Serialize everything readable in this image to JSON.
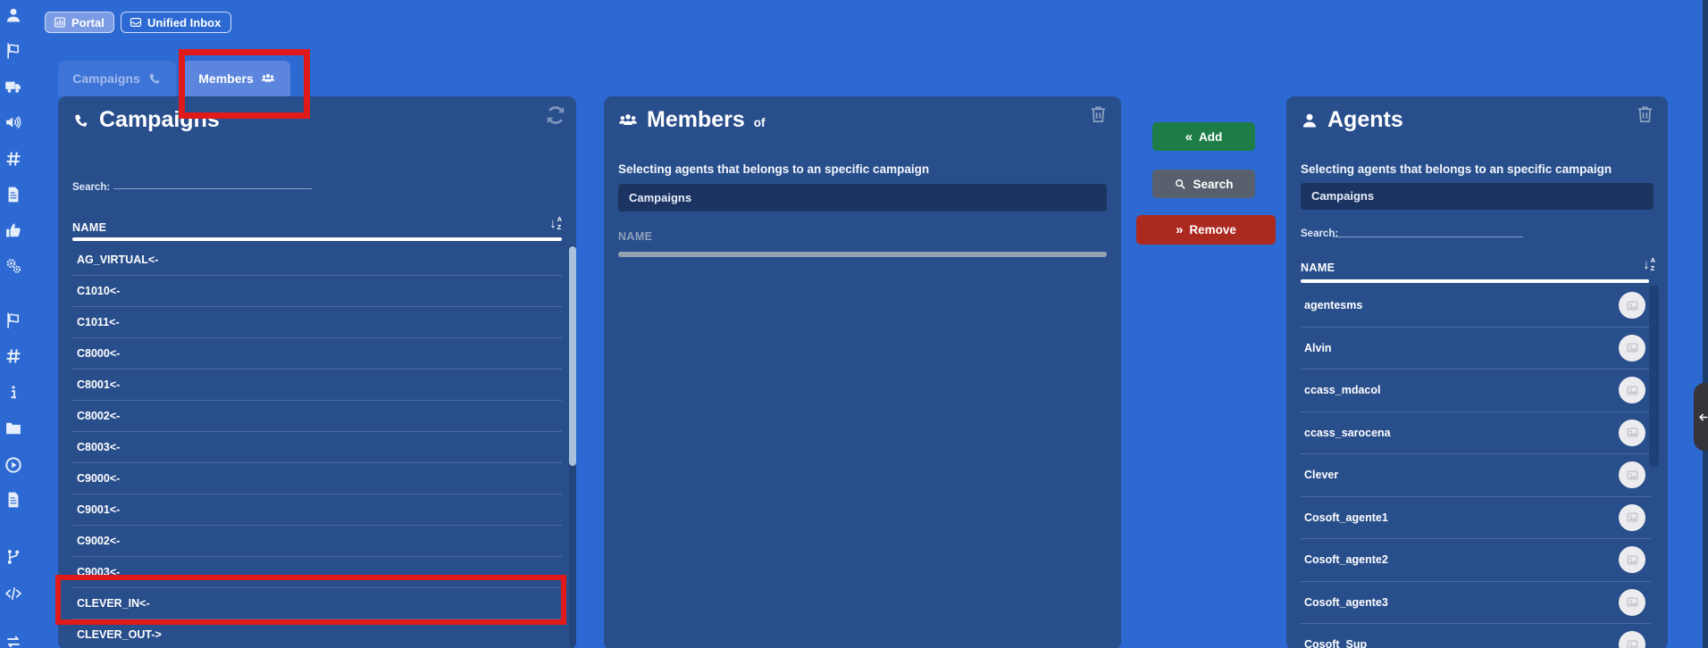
{
  "topbar": {
    "portal_label": "Portal",
    "unified_inbox_label": "Unified Inbox"
  },
  "tabs": {
    "campaigns_label": "Campaigns",
    "members_label": "Members"
  },
  "campaigns_panel": {
    "title": "Campaigns",
    "search_label": "Search:",
    "name_header": "NAME",
    "items": [
      "AG_VIRTUAL<-",
      "C1010<-",
      "C1011<-",
      "C8000<-",
      "C8001<-",
      "C8002<-",
      "C8003<-",
      "C9000<-",
      "C9001<-",
      "C9002<-",
      "C9003<-",
      "CLEVER_IN<-",
      "CLEVER_OUT->"
    ]
  },
  "members_panel": {
    "title": "Members",
    "title_suffix": "of",
    "description": "Selecting agents that belongs to an specific campaign",
    "input_value": "Campaigns",
    "name_header": "NAME"
  },
  "agents_panel": {
    "title": "Agents",
    "description": "Selecting agents that belongs to an specific campaign",
    "input_value": "Campaigns",
    "search_label": "Search:",
    "name_header": "NAME",
    "items": [
      "agentesms",
      "Alvin",
      "ccass_mdacol",
      "ccass_sarocena",
      "Clever",
      "Cosoft_agente1",
      "Cosoft_agente2",
      "Cosoft_agente3",
      "Cosoft_Sup"
    ]
  },
  "action_buttons": {
    "add_label": "Add",
    "search_label": "Search",
    "remove_label": "Remove",
    "add_icon_glyph": "«",
    "remove_icon_glyph": "»"
  },
  "sort_icon": {
    "arrow": "↓",
    "top": "A",
    "bottom": "Z"
  },
  "sidebar_icons": [
    "user-icon",
    "flag-icon",
    "truck-icon",
    "volume-up-icon",
    "hashtag-icon",
    "file-icon",
    "thumbs-up-icon",
    "cogs-icon",
    "flag-icon",
    "hashtag-icon",
    "info-icon",
    "folder-icon",
    "play-circle-icon",
    "file-icon",
    "code-branch-icon",
    "code-icon",
    "exchange-icon"
  ],
  "colors": {
    "page_bg": "#2d69d2",
    "panel_bg": "#284e8c",
    "input_bg": "#1c3461",
    "active_tab_bg": "#5c86de",
    "inactive_tab_text": "#a3bcec",
    "add_green": "#1e7d46",
    "search_gray": "#57606c",
    "remove_red": "#ab291e",
    "annotation_red": "#e01a1a",
    "members_name_muted": "#8fa0bb"
  }
}
